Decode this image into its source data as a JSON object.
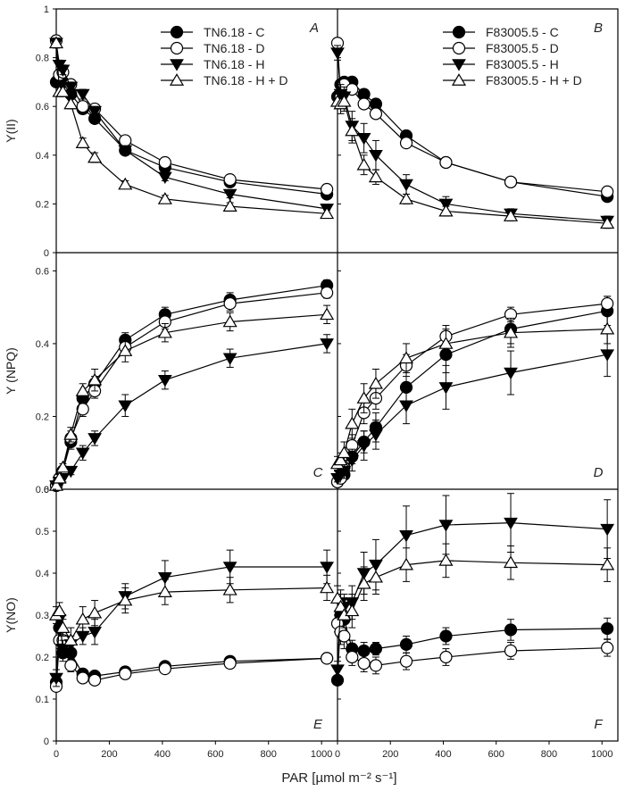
{
  "figure": {
    "xlabel": "PAR [µmol m⁻² s⁻¹]",
    "x_ticks": [
      0,
      200,
      400,
      600,
      800,
      1000
    ]
  },
  "legends": {
    "left": [
      "TN6.18  - C",
      "TN6.18  - D",
      "TN6.18 - H",
      "TN6.18  - H + D"
    ],
    "right": [
      "F83005.5 - C",
      "F83005.5 - D",
      "F83005.5 - H",
      "F83005.5 - H + D"
    ]
  },
  "chart_data": [
    {
      "type": "line",
      "panel": "A",
      "title": "A",
      "ylabel": "Y(II)",
      "ylim": [
        0,
        1.0
      ],
      "y_ticks": [
        0,
        0.2,
        0.4,
        0.6,
        0.8,
        1.0
      ],
      "xlim": [
        0,
        1060
      ],
      "series": [
        {
          "name": "TN6.18  - C",
          "marker": "filled-circle",
          "x": [
            0,
            12,
            25,
            55,
            100,
            145,
            260,
            410,
            655,
            1020
          ],
          "y": [
            0.7,
            0.73,
            0.7,
            0.65,
            0.59,
            0.55,
            0.42,
            0.35,
            0.29,
            0.24
          ],
          "err": [
            0.02,
            0.02,
            0.02,
            0.02,
            0.02,
            0.02,
            0.015,
            0.015,
            0.01,
            0.01
          ]
        },
        {
          "name": "TN6.18  - D",
          "marker": "open-circle",
          "x": [
            0,
            12,
            25,
            55,
            100,
            145,
            260,
            410,
            655,
            1020
          ],
          "y": [
            0.87,
            0.73,
            0.74,
            0.69,
            0.6,
            0.59,
            0.46,
            0.37,
            0.3,
            0.26
          ],
          "err": [
            0.02,
            0.02,
            0.02,
            0.02,
            0.02,
            0.02,
            0.015,
            0.015,
            0.01,
            0.01
          ]
        },
        {
          "name": "TN6.18 - H",
          "marker": "filled-triangle-down",
          "x": [
            0,
            12,
            25,
            55,
            100,
            145,
            260,
            410,
            655,
            1020
          ],
          "y": [
            0.86,
            0.77,
            0.75,
            0.68,
            0.65,
            0.58,
            0.42,
            0.31,
            0.24,
            0.18
          ],
          "err": [
            0.02,
            0.02,
            0.02,
            0.02,
            0.02,
            0.02,
            0.015,
            0.015,
            0.015,
            0.015
          ]
        },
        {
          "name": "TN6.18  - H + D",
          "marker": "open-triangle-up",
          "x": [
            0,
            12,
            25,
            55,
            100,
            145,
            260,
            410,
            655,
            1020
          ],
          "y": [
            0.86,
            0.66,
            0.66,
            0.61,
            0.45,
            0.39,
            0.28,
            0.22,
            0.19,
            0.16
          ],
          "err": [
            0.02,
            0.02,
            0.02,
            0.02,
            0.02,
            0.02,
            0.015,
            0.015,
            0.015,
            0.015
          ]
        }
      ]
    },
    {
      "type": "line",
      "panel": "B",
      "title": "B",
      "ylabel": "",
      "ylim": [
        0,
        1.0
      ],
      "y_ticks": [
        0,
        0.2,
        0.4,
        0.6,
        0.8,
        1.0
      ],
      "xlim": [
        0,
        1060
      ],
      "series": [
        {
          "name": "F83005.5 - C",
          "marker": "filled-circle",
          "x": [
            0,
            12,
            25,
            55,
            100,
            145,
            260,
            410,
            655,
            1020
          ],
          "y": [
            0.64,
            0.69,
            0.7,
            0.7,
            0.65,
            0.61,
            0.48,
            0.37,
            0.29,
            0.23
          ],
          "err": [
            0.02,
            0.02,
            0.02,
            0.02,
            0.02,
            0.02,
            0.02,
            0.02,
            0.015,
            0.015
          ]
        },
        {
          "name": "F83005.5 - D",
          "marker": "open-circle",
          "x": [
            0,
            12,
            25,
            55,
            100,
            145,
            260,
            410,
            655,
            1020
          ],
          "y": [
            0.86,
            0.64,
            0.69,
            0.67,
            0.61,
            0.57,
            0.45,
            0.37,
            0.29,
            0.25
          ],
          "err": [
            0.02,
            0.02,
            0.02,
            0.02,
            0.02,
            0.02,
            0.02,
            0.02,
            0.015,
            0.015
          ]
        },
        {
          "name": "F83005.5 - H",
          "marker": "filled-triangle-down",
          "x": [
            0,
            12,
            25,
            55,
            100,
            145,
            260,
            410,
            655,
            1020
          ],
          "y": [
            0.82,
            0.65,
            0.64,
            0.52,
            0.47,
            0.4,
            0.28,
            0.2,
            0.16,
            0.13
          ],
          "err": [
            0.03,
            0.04,
            0.04,
            0.06,
            0.06,
            0.06,
            0.04,
            0.03,
            0.02,
            0.02
          ]
        },
        {
          "name": "F83005.5 - H + D",
          "marker": "open-triangle-up",
          "x": [
            0,
            12,
            25,
            55,
            100,
            145,
            260,
            410,
            655,
            1020
          ],
          "y": [
            0.62,
            0.61,
            0.62,
            0.5,
            0.36,
            0.31,
            0.22,
            0.17,
            0.15,
            0.12
          ],
          "err": [
            0.03,
            0.04,
            0.04,
            0.05,
            0.04,
            0.03,
            0.02,
            0.02,
            0.02,
            0.02
          ]
        }
      ]
    },
    {
      "type": "line",
      "panel": "C",
      "title": "C",
      "ylabel": "Y (NPQ)",
      "ylim": [
        0,
        0.65
      ],
      "y_ticks": [
        0,
        0.2,
        0.4,
        0.6
      ],
      "xlim": [
        0,
        1060
      ],
      "series": [
        {
          "name": "TN6.18  - C",
          "marker": "filled-circle",
          "x": [
            0,
            12,
            25,
            55,
            100,
            145,
            260,
            410,
            655,
            1020
          ],
          "y": [
            0.01,
            0.03,
            0.05,
            0.13,
            0.25,
            0.29,
            0.41,
            0.48,
            0.52,
            0.56
          ],
          "err": [
            0.01,
            0.01,
            0.01,
            0.02,
            0.02,
            0.02,
            0.02,
            0.02,
            0.02,
            0.015
          ]
        },
        {
          "name": "TN6.18  - D",
          "marker": "open-circle",
          "x": [
            0,
            12,
            25,
            55,
            100,
            145,
            260,
            410,
            655,
            1020
          ],
          "y": [
            0.01,
            0.03,
            0.05,
            0.14,
            0.22,
            0.27,
            0.39,
            0.46,
            0.51,
            0.54
          ],
          "err": [
            0.01,
            0.01,
            0.01,
            0.02,
            0.02,
            0.02,
            0.02,
            0.02,
            0.02,
            0.015
          ]
        },
        {
          "name": "TN6.18 - H",
          "marker": "filled-triangle-down",
          "x": [
            0,
            12,
            25,
            55,
            100,
            145,
            260,
            410,
            655,
            1020
          ],
          "y": [
            0.01,
            0.02,
            0.03,
            0.05,
            0.1,
            0.14,
            0.23,
            0.3,
            0.36,
            0.4
          ],
          "err": [
            0.01,
            0.01,
            0.01,
            0.01,
            0.02,
            0.02,
            0.03,
            0.025,
            0.025,
            0.025
          ]
        },
        {
          "name": "TN6.18  - H + D",
          "marker": "open-triangle-up",
          "x": [
            0,
            12,
            25,
            55,
            100,
            145,
            260,
            410,
            655,
            1020
          ],
          "y": [
            0.01,
            0.03,
            0.06,
            0.15,
            0.27,
            0.3,
            0.38,
            0.43,
            0.46,
            0.48
          ],
          "err": [
            0.01,
            0.01,
            0.01,
            0.02,
            0.02,
            0.03,
            0.03,
            0.025,
            0.025,
            0.025
          ]
        }
      ]
    },
    {
      "type": "line",
      "panel": "D",
      "title": "D",
      "ylabel": "",
      "ylim": [
        0,
        0.65
      ],
      "y_ticks": [
        0,
        0.2,
        0.4,
        0.6
      ],
      "xlim": [
        0,
        1060
      ],
      "series": [
        {
          "name": "F83005.5 - C",
          "marker": "filled-circle",
          "x": [
            0,
            12,
            25,
            55,
            100,
            145,
            260,
            410,
            655,
            1020
          ],
          "y": [
            0.02,
            0.03,
            0.04,
            0.09,
            0.13,
            0.17,
            0.28,
            0.37,
            0.44,
            0.49
          ],
          "err": [
            0.01,
            0.01,
            0.01,
            0.02,
            0.03,
            0.04,
            0.05,
            0.05,
            0.04,
            0.04
          ]
        },
        {
          "name": "F83005.5 - D",
          "marker": "open-circle",
          "x": [
            0,
            12,
            25,
            55,
            100,
            145,
            260,
            410,
            655,
            1020
          ],
          "y": [
            0.02,
            0.03,
            0.06,
            0.12,
            0.21,
            0.25,
            0.34,
            0.42,
            0.48,
            0.51
          ],
          "err": [
            0.01,
            0.01,
            0.02,
            0.03,
            0.03,
            0.03,
            0.03,
            0.03,
            0.02,
            0.02
          ]
        },
        {
          "name": "F83005.5 - H",
          "marker": "filled-triangle-down",
          "x": [
            0,
            12,
            25,
            55,
            100,
            145,
            260,
            410,
            655,
            1020
          ],
          "y": [
            0.03,
            0.04,
            0.05,
            0.08,
            0.12,
            0.15,
            0.23,
            0.28,
            0.32,
            0.37
          ],
          "err": [
            0.01,
            0.01,
            0.02,
            0.03,
            0.04,
            0.04,
            0.05,
            0.06,
            0.06,
            0.06
          ]
        },
        {
          "name": "F83005.5 - H + D",
          "marker": "open-triangle-up",
          "x": [
            0,
            12,
            25,
            55,
            100,
            145,
            260,
            410,
            655,
            1020
          ],
          "y": [
            0.07,
            0.08,
            0.1,
            0.18,
            0.25,
            0.29,
            0.36,
            0.4,
            0.43,
            0.44
          ],
          "err": [
            0.02,
            0.02,
            0.03,
            0.04,
            0.04,
            0.04,
            0.04,
            0.04,
            0.04,
            0.04
          ]
        }
      ]
    },
    {
      "type": "line",
      "panel": "E",
      "title": "E",
      "ylabel": "Y(NO)",
      "ylim": [
        0,
        0.6
      ],
      "y_ticks": [
        0,
        0.1,
        0.2,
        0.3,
        0.4,
        0.5,
        0.6
      ],
      "xlim": [
        0,
        1060
      ],
      "series": [
        {
          "name": "TN6.18  - C",
          "marker": "filled-circle",
          "x": [
            0,
            12,
            25,
            55,
            100,
            145,
            260,
            410,
            655,
            1020
          ],
          "y": [
            0.14,
            0.27,
            0.21,
            0.21,
            0.16,
            0.155,
            0.165,
            0.178,
            0.19,
            0.197
          ],
          "err": [
            0.01,
            0.02,
            0.02,
            0.02,
            0.01,
            0.01,
            0.01,
            0.01,
            0.01,
            0.01
          ]
        },
        {
          "name": "TN6.18  - D",
          "marker": "open-circle",
          "x": [
            0,
            12,
            25,
            55,
            100,
            145,
            260,
            410,
            655,
            1020
          ],
          "y": [
            0.13,
            0.24,
            0.24,
            0.18,
            0.15,
            0.145,
            0.16,
            0.172,
            0.185,
            0.197
          ],
          "err": [
            0.01,
            0.02,
            0.02,
            0.015,
            0.01,
            0.01,
            0.01,
            0.01,
            0.01,
            0.01
          ]
        },
        {
          "name": "TN6.18 - H",
          "marker": "filled-triangle-down",
          "x": [
            0,
            12,
            25,
            55,
            100,
            145,
            260,
            410,
            655,
            1020
          ],
          "y": [
            0.15,
            0.29,
            0.22,
            0.23,
            0.25,
            0.26,
            0.345,
            0.39,
            0.415,
            0.415
          ],
          "err": [
            0.02,
            0.02,
            0.02,
            0.02,
            0.02,
            0.03,
            0.03,
            0.04,
            0.04,
            0.04
          ]
        },
        {
          "name": "TN6.18  - H + D",
          "marker": "open-triangle-up",
          "x": [
            0,
            12,
            25,
            55,
            100,
            145,
            260,
            410,
            655,
            1020
          ],
          "y": [
            0.3,
            0.31,
            0.27,
            0.24,
            0.29,
            0.305,
            0.335,
            0.355,
            0.36,
            0.365
          ],
          "err": [
            0.02,
            0.02,
            0.02,
            0.03,
            0.03,
            0.03,
            0.03,
            0.03,
            0.03,
            0.03
          ]
        }
      ]
    },
    {
      "type": "line",
      "panel": "F",
      "title": "F",
      "ylabel": "",
      "ylim": [
        0,
        0.6
      ],
      "y_ticks": [
        0,
        0.1,
        0.2,
        0.3,
        0.4,
        0.5,
        0.6
      ],
      "xlim": [
        0,
        1060
      ],
      "series": [
        {
          "name": "F83005.5 - C",
          "marker": "filled-circle",
          "x": [
            0,
            12,
            25,
            55,
            100,
            145,
            260,
            410,
            655,
            1020
          ],
          "y": [
            0.145,
            0.3,
            0.29,
            0.22,
            0.215,
            0.22,
            0.23,
            0.25,
            0.265,
            0.268
          ],
          "err": [
            0.01,
            0.03,
            0.03,
            0.02,
            0.02,
            0.015,
            0.02,
            0.02,
            0.025,
            0.025
          ]
        },
        {
          "name": "F83005.5 - D",
          "marker": "open-circle",
          "x": [
            0,
            12,
            25,
            55,
            100,
            145,
            260,
            410,
            655,
            1020
          ],
          "y": [
            0.28,
            0.26,
            0.25,
            0.2,
            0.185,
            0.18,
            0.19,
            0.2,
            0.215,
            0.222
          ],
          "err": [
            0.02,
            0.03,
            0.03,
            0.02,
            0.02,
            0.02,
            0.02,
            0.02,
            0.02,
            0.02
          ]
        },
        {
          "name": "F83005.5 - H",
          "marker": "filled-triangle-down",
          "x": [
            0,
            12,
            25,
            55,
            100,
            145,
            260,
            410,
            655,
            1020
          ],
          "y": [
            0.17,
            0.33,
            0.32,
            0.33,
            0.4,
            0.42,
            0.49,
            0.515,
            0.52,
            0.505
          ],
          "err": [
            0.02,
            0.03,
            0.03,
            0.04,
            0.05,
            0.06,
            0.07,
            0.07,
            0.07,
            0.07
          ]
        },
        {
          "name": "F83005.5 - H + D",
          "marker": "open-triangle-up",
          "x": [
            0,
            12,
            25,
            55,
            100,
            145,
            260,
            410,
            655,
            1020
          ],
          "y": [
            0.34,
            0.32,
            0.3,
            0.31,
            0.375,
            0.39,
            0.42,
            0.43,
            0.425,
            0.42
          ],
          "err": [
            0.03,
            0.03,
            0.03,
            0.04,
            0.04,
            0.04,
            0.04,
            0.04,
            0.04,
            0.04
          ]
        }
      ]
    }
  ]
}
